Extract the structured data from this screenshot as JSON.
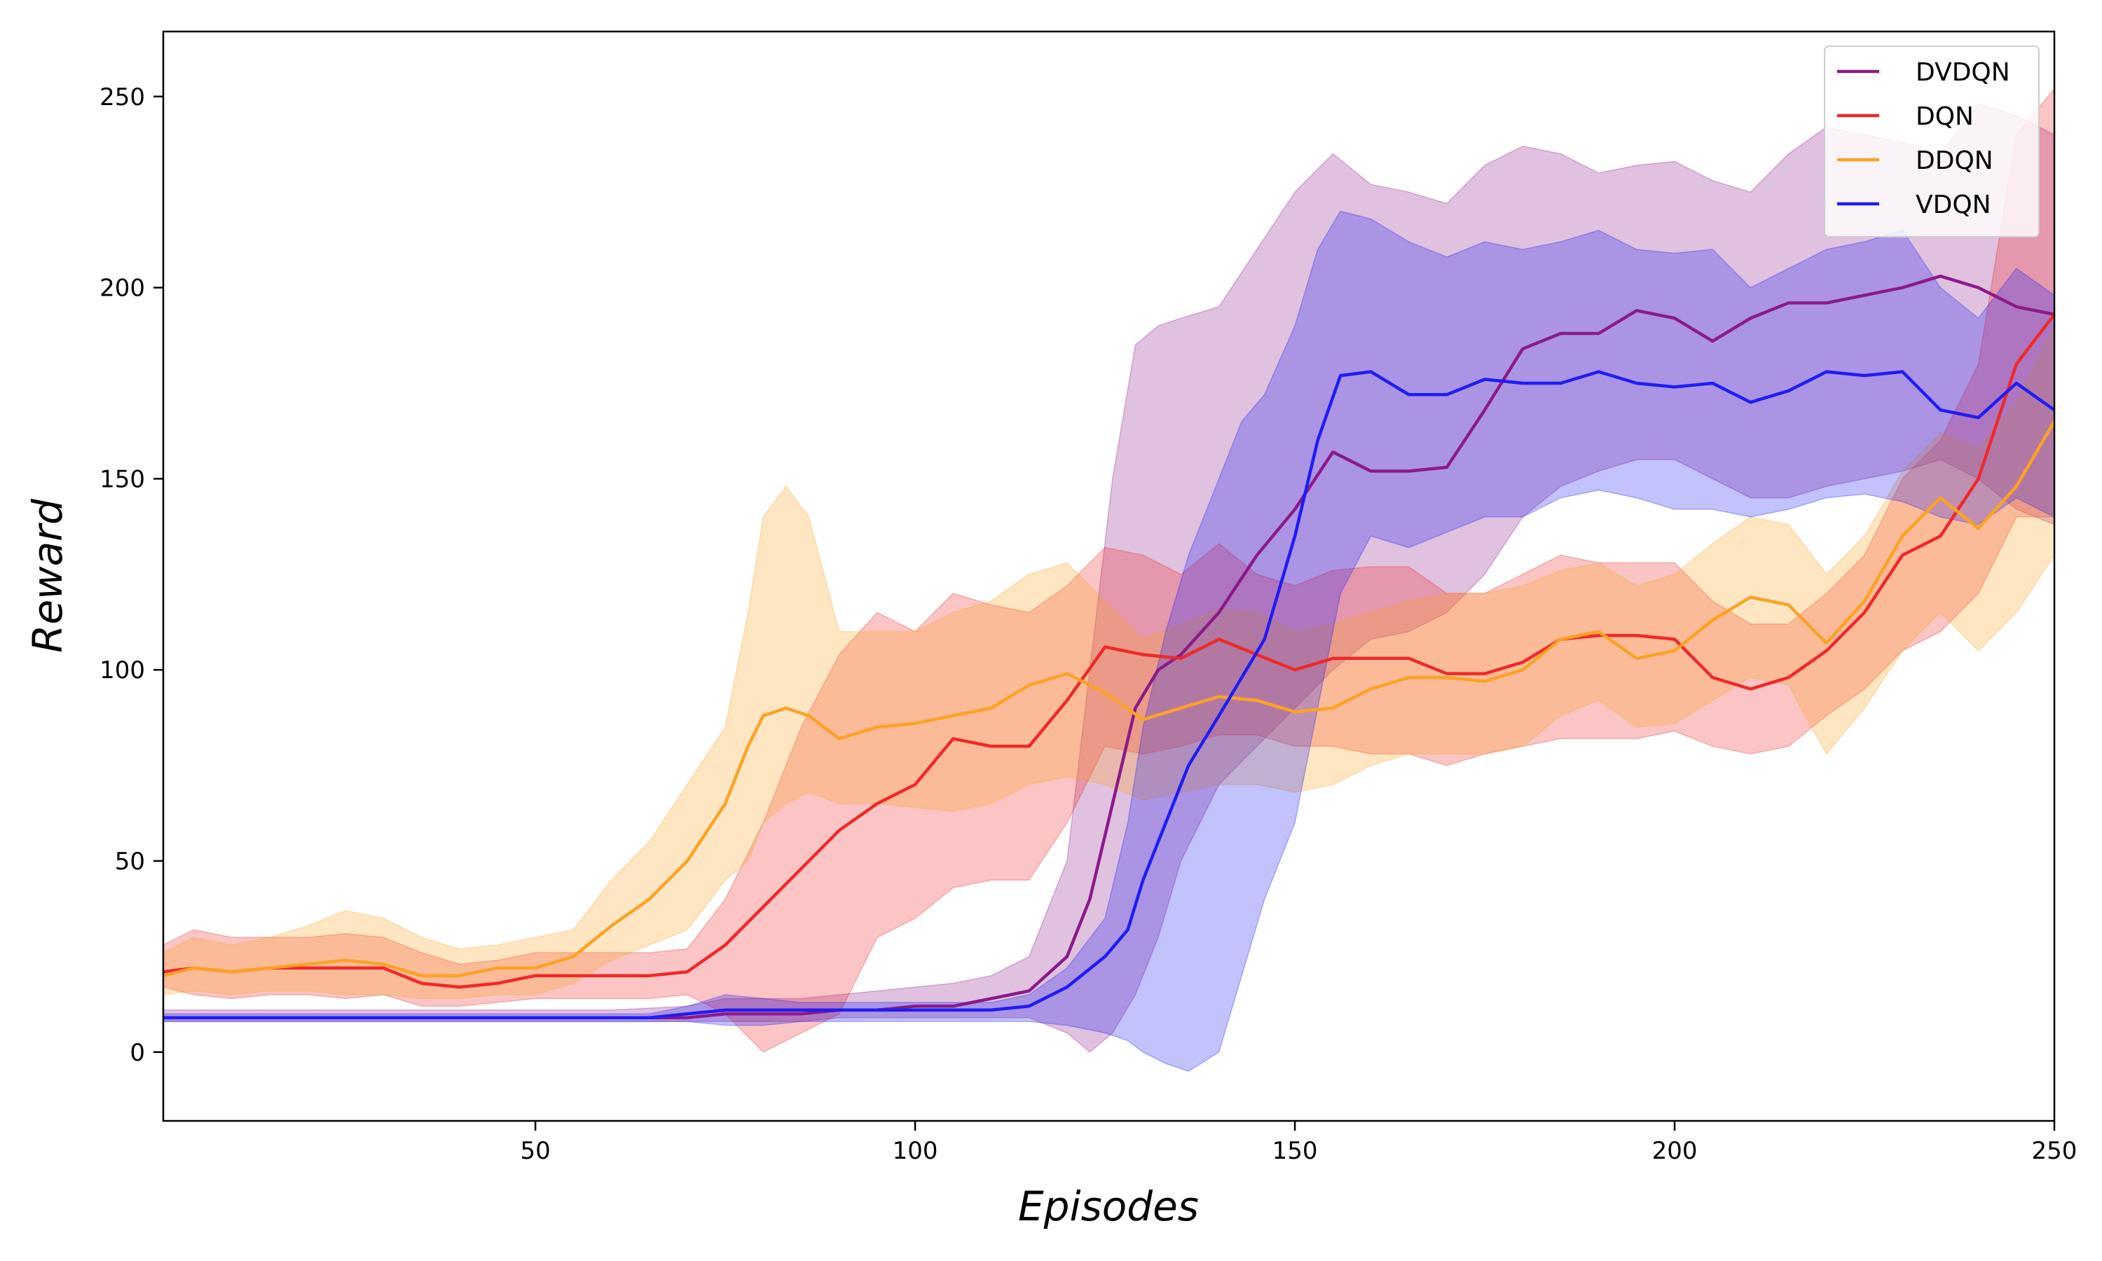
{
  "chart_data": {
    "type": "line",
    "title": "",
    "xlabel": "Episodes",
    "ylabel": "Reward",
    "xlim": [
      1,
      250
    ],
    "ylim": [
      -18,
      267
    ],
    "xticks": [
      50,
      100,
      150,
      200,
      250
    ],
    "yticks": [
      0,
      50,
      100,
      150,
      200,
      250
    ],
    "grid": false,
    "legend": "top-right",
    "series": [
      {
        "name": "DVDQN",
        "color": "#8b1a89",
        "x": [
          1,
          10,
          20,
          30,
          40,
          50,
          60,
          70,
          75,
          80,
          85,
          90,
          95,
          100,
          105,
          110,
          115,
          120,
          123,
          126,
          129,
          132,
          135,
          140,
          145,
          150,
          155,
          160,
          165,
          170,
          175,
          180,
          185,
          190,
          195,
          200,
          205,
          210,
          215,
          220,
          225,
          230,
          235,
          240,
          245,
          250
        ],
        "mean": [
          9,
          9,
          9,
          9,
          9,
          9,
          9,
          9,
          10,
          10,
          10,
          11,
          11,
          12,
          12,
          14,
          16,
          25,
          40,
          65,
          90,
          100,
          104,
          115,
          130,
          142,
          157,
          152,
          152,
          153,
          168,
          184,
          188,
          188,
          194,
          192,
          186,
          192,
          196,
          196,
          198,
          200,
          203,
          200,
          195,
          193
        ],
        "upper": [
          11,
          11,
          11,
          11,
          11,
          11,
          11,
          12,
          14,
          14,
          14,
          15,
          16,
          17,
          18,
          20,
          25,
          50,
          100,
          150,
          185,
          190,
          192,
          195,
          210,
          225,
          235,
          227,
          225,
          222,
          232,
          237,
          235,
          230,
          232,
          233,
          228,
          225,
          235,
          242,
          240,
          238,
          235,
          248,
          245,
          240
        ],
        "lower": [
          8,
          8,
          8,
          8,
          8,
          8,
          8,
          8,
          8,
          8,
          8,
          9,
          9,
          9,
          9,
          9,
          9,
          5,
          0,
          5,
          15,
          30,
          50,
          70,
          80,
          90,
          100,
          108,
          110,
          115,
          125,
          140,
          148,
          152,
          155,
          155,
          150,
          145,
          145,
          148,
          150,
          152,
          155,
          150,
          142,
          138
        ]
      },
      {
        "name": "DQN",
        "color": "#f0282a",
        "x": [
          1,
          5,
          10,
          15,
          20,
          25,
          30,
          35,
          40,
          45,
          50,
          55,
          60,
          65,
          70,
          75,
          80,
          85,
          90,
          95,
          100,
          105,
          110,
          115,
          120,
          125,
          130,
          135,
          140,
          145,
          150,
          155,
          160,
          165,
          170,
          175,
          180,
          185,
          190,
          195,
          200,
          205,
          210,
          215,
          220,
          225,
          230,
          235,
          240,
          245,
          250
        ],
        "mean": [
          21,
          22,
          21,
          22,
          22,
          22,
          22,
          18,
          17,
          18,
          20,
          20,
          20,
          20,
          21,
          28,
          38,
          48,
          58,
          65,
          70,
          82,
          80,
          80,
          92,
          106,
          104,
          103,
          108,
          104,
          100,
          103,
          103,
          103,
          99,
          99,
          102,
          108,
          109,
          109,
          108,
          98,
          95,
          98,
          105,
          115,
          130,
          135,
          150,
          180,
          193
        ],
        "upper": [
          28,
          32,
          30,
          30,
          30,
          31,
          30,
          26,
          23,
          24,
          26,
          26,
          26,
          26,
          27,
          40,
          60,
          85,
          104,
          115,
          110,
          120,
          117,
          115,
          122,
          132,
          130,
          125,
          133,
          125,
          122,
          126,
          127,
          127,
          120,
          120,
          125,
          130,
          128,
          128,
          128,
          118,
          112,
          112,
          120,
          130,
          150,
          160,
          180,
          240,
          252
        ],
        "lower": [
          17,
          15,
          14,
          15,
          15,
          14,
          15,
          12,
          12,
          13,
          14,
          14,
          14,
          14,
          15,
          10,
          0,
          5,
          10,
          30,
          35,
          43,
          45,
          45,
          60,
          80,
          78,
          80,
          83,
          83,
          80,
          80,
          78,
          78,
          75,
          78,
          80,
          82,
          82,
          82,
          84,
          80,
          78,
          80,
          88,
          95,
          105,
          110,
          120,
          140,
          140
        ]
      },
      {
        "name": "DDQN",
        "color": "#fca223",
        "x": [
          1,
          5,
          10,
          15,
          20,
          25,
          30,
          35,
          40,
          45,
          50,
          55,
          60,
          65,
          70,
          75,
          78,
          80,
          83,
          86,
          90,
          95,
          100,
          105,
          110,
          115,
          120,
          125,
          130,
          135,
          140,
          145,
          150,
          155,
          160,
          165,
          170,
          175,
          180,
          185,
          190,
          195,
          200,
          205,
          210,
          215,
          220,
          225,
          230,
          235,
          240,
          245,
          250
        ],
        "mean": [
          20,
          22,
          21,
          22,
          23,
          24,
          23,
          20,
          20,
          22,
          22,
          25,
          33,
          40,
          50,
          65,
          80,
          88,
          90,
          88,
          82,
          85,
          86,
          88,
          90,
          96,
          99,
          94,
          87,
          90,
          93,
          92,
          89,
          90,
          95,
          98,
          98,
          97,
          100,
          108,
          110,
          103,
          105,
          113,
          119,
          117,
          107,
          118,
          135,
          145,
          137,
          148,
          165
        ],
        "upper": [
          26,
          30,
          28,
          30,
          33,
          37,
          35,
          30,
          27,
          28,
          30,
          32,
          45,
          55,
          70,
          85,
          115,
          140,
          148,
          140,
          110,
          110,
          110,
          115,
          118,
          125,
          128,
          118,
          108,
          112,
          116,
          115,
          110,
          112,
          115,
          118,
          120,
          120,
          122,
          126,
          128,
          122,
          125,
          133,
          140,
          138,
          125,
          135,
          152,
          162,
          158,
          170,
          190
        ],
        "lower": [
          15,
          16,
          15,
          16,
          16,
          15,
          15,
          14,
          14,
          15,
          15,
          18,
          24,
          28,
          32,
          45,
          50,
          60,
          65,
          68,
          65,
          65,
          64,
          63,
          65,
          70,
          72,
          70,
          66,
          68,
          70,
          70,
          68,
          70,
          75,
          78,
          78,
          78,
          80,
          88,
          92,
          85,
          86,
          92,
          98,
          96,
          78,
          90,
          105,
          115,
          105,
          115,
          130
        ]
      },
      {
        "name": "VDQN",
        "color": "#1f1cf4",
        "x": [
          1,
          10,
          20,
          30,
          40,
          50,
          60,
          65,
          70,
          75,
          80,
          85,
          90,
          95,
          100,
          105,
          110,
          115,
          120,
          125,
          128,
          130,
          133,
          136,
          140,
          143,
          146,
          150,
          153,
          156,
          160,
          165,
          170,
          175,
          180,
          185,
          190,
          195,
          200,
          205,
          210,
          215,
          220,
          225,
          230,
          235,
          240,
          245,
          250
        ],
        "mean": [
          9,
          9,
          9,
          9,
          9,
          9,
          9,
          9,
          10,
          11,
          11,
          11,
          11,
          11,
          11,
          11,
          11,
          12,
          17,
          25,
          32,
          45,
          60,
          75,
          88,
          98,
          108,
          135,
          160,
          177,
          178,
          172,
          172,
          176,
          175,
          175,
          178,
          175,
          174,
          175,
          170,
          173,
          178,
          177,
          178,
          168,
          166,
          175,
          168
        ],
        "upper": [
          10,
          10,
          10,
          10,
          10,
          10,
          10,
          10,
          12,
          15,
          14,
          13,
          13,
          13,
          13,
          13,
          13,
          15,
          22,
          35,
          60,
          85,
          110,
          130,
          150,
          165,
          172,
          190,
          210,
          220,
          218,
          212,
          208,
          212,
          210,
          212,
          215,
          210,
          209,
          210,
          200,
          205,
          210,
          212,
          215,
          200,
          192,
          205,
          198
        ],
        "lower": [
          8,
          8,
          8,
          8,
          8,
          8,
          8,
          8,
          8,
          7,
          7,
          8,
          8,
          8,
          8,
          8,
          8,
          8,
          7,
          5,
          3,
          0,
          -3,
          -5,
          0,
          20,
          40,
          60,
          90,
          120,
          135,
          132,
          136,
          140,
          140,
          145,
          147,
          145,
          142,
          142,
          140,
          142,
          145,
          146,
          144,
          140,
          138,
          145,
          140
        ]
      }
    ]
  }
}
